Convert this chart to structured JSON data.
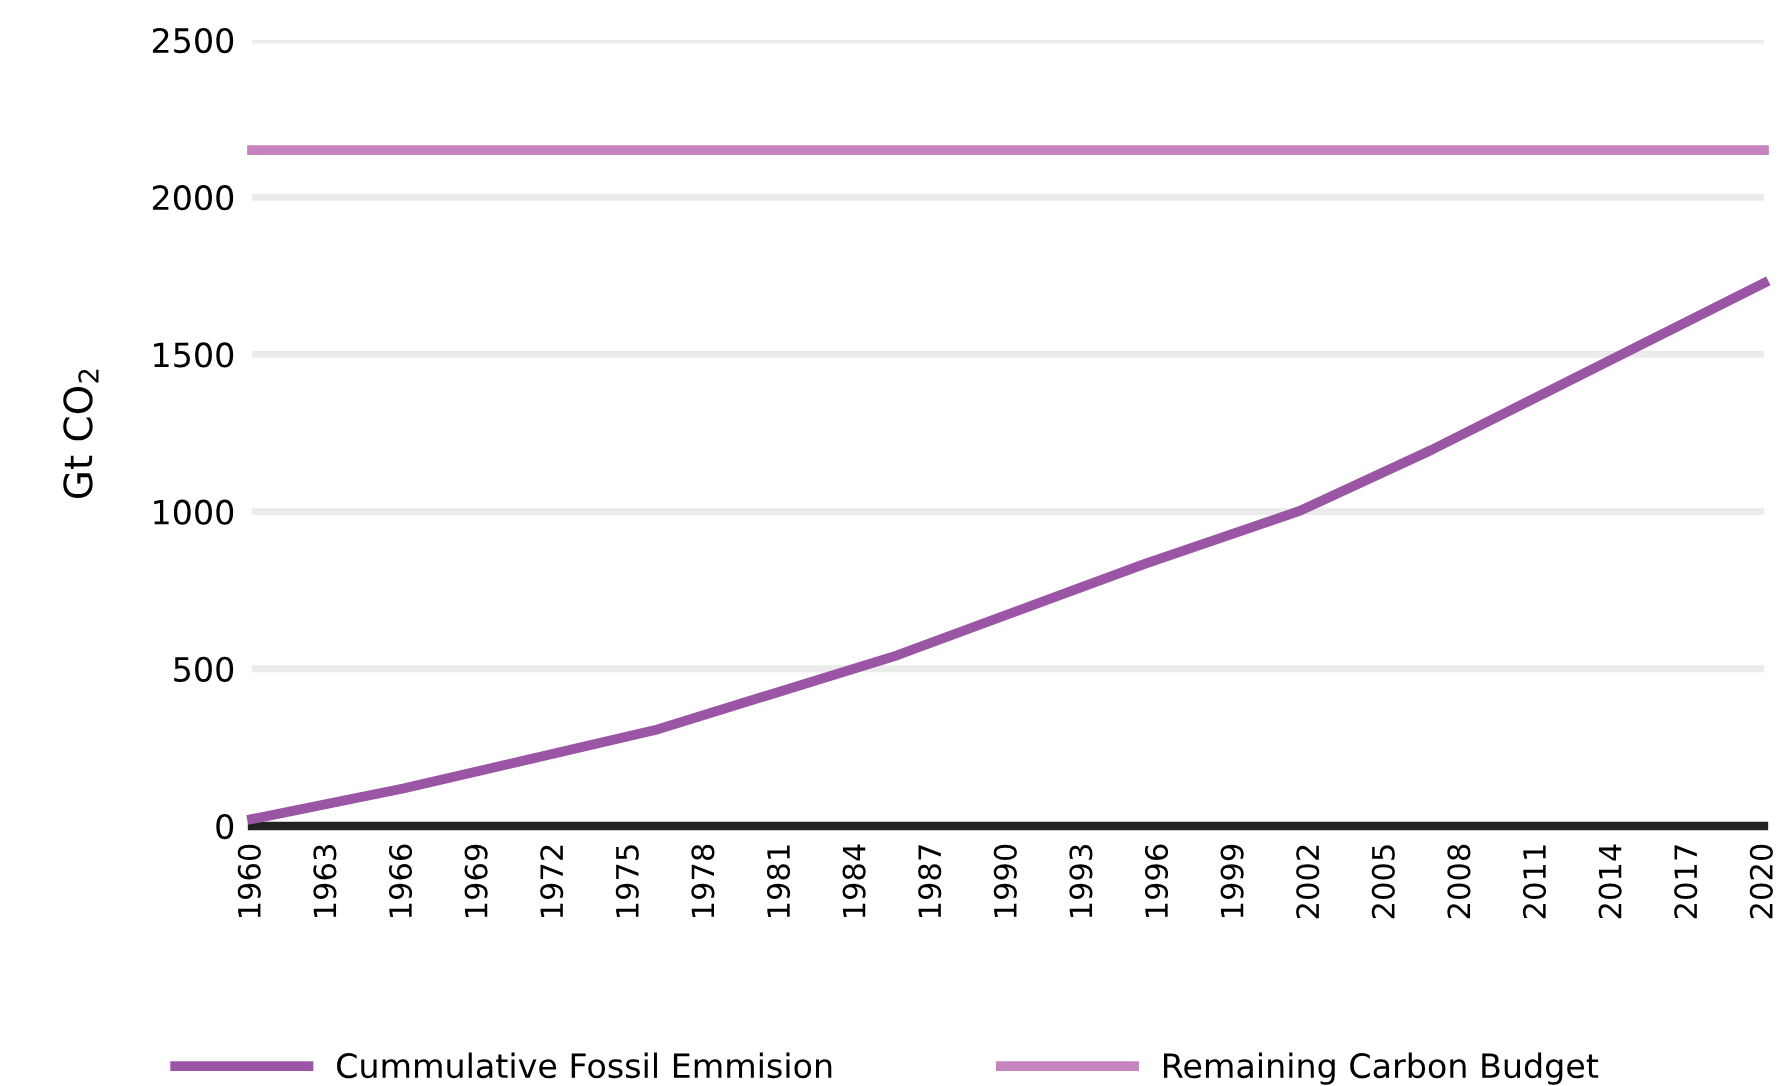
{
  "chart_data": {
    "type": "line",
    "ylabel": "Gt CO$_{2}$",
    "x": [
      1960,
      1966,
      1976,
      1985.6,
      1995.4,
      2001.6,
      2006.8,
      2020
    ],
    "series": [
      {
        "name": "Cummulative Fossil Emmision",
        "color": "#9b55a5",
        "values": [
          22,
          119,
          305,
          543,
          833,
          1003,
          1196,
          1727
        ]
      },
      {
        "name": "Remaining Carbon Budget",
        "color": "#c584bd",
        "x": [
          1960,
          2020
        ],
        "values": [
          2150,
          2150
        ]
      }
    ],
    "xlim": [
      1960,
      2020
    ],
    "xticks": [
      1960,
      1963,
      1966,
      1969,
      1972,
      1975,
      1978,
      1981,
      1984,
      1987,
      1990,
      1993,
      1996,
      1999,
      2002,
      2005,
      2008,
      2011,
      2014,
      2017,
      2020
    ],
    "ylim": [
      0,
      2500
    ],
    "yticks": [
      0,
      500,
      1000,
      1500,
      2000,
      2500
    ],
    "grid": "y",
    "legend": "bottom",
    "marker": "none",
    "line_style": "solid"
  }
}
